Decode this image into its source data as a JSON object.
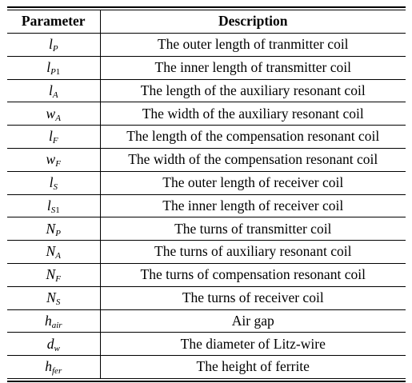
{
  "table": {
    "headers": {
      "parameter": "Parameter",
      "description": "Description"
    },
    "rows": [
      {
        "symbol": "l",
        "subscript": "P",
        "subscript_num": "",
        "description": "The outer length of tranmitter coil"
      },
      {
        "symbol": "l",
        "subscript": "P",
        "subscript_num": "1",
        "description": "The inner length of transmitter coil"
      },
      {
        "symbol": "l",
        "subscript": "A",
        "subscript_num": "",
        "description": "The length of the auxiliary resonant coil"
      },
      {
        "symbol": "w",
        "subscript": "A",
        "subscript_num": "",
        "description": "The width of the auxiliary resonant coil"
      },
      {
        "symbol": "l",
        "subscript": "F",
        "subscript_num": "",
        "description": "The length of the compensation resonant coil"
      },
      {
        "symbol": "w",
        "subscript": "F",
        "subscript_num": "",
        "description": "The width of the compensation resonant coil"
      },
      {
        "symbol": "l",
        "subscript": "S",
        "subscript_num": "",
        "description": "The outer length of receiver coil"
      },
      {
        "symbol": "l",
        "subscript": "S",
        "subscript_num": "1",
        "description": "The inner length of receiver  coil"
      },
      {
        "symbol": "N",
        "subscript": "P",
        "subscript_num": "",
        "description": "The turns of transmitter coil"
      },
      {
        "symbol": "N",
        "subscript": "A",
        "subscript_num": "",
        "description": "The turns of auxiliary resonant coil"
      },
      {
        "symbol": "N",
        "subscript": "F",
        "subscript_num": "",
        "description": "The turns of compensation resonant coil"
      },
      {
        "symbol": "N",
        "subscript": "S",
        "subscript_num": "",
        "description": "The turns of receiver coil"
      },
      {
        "symbol": "h",
        "subscript": "air",
        "subscript_num": "",
        "description": "Air gap"
      },
      {
        "symbol": "d",
        "subscript": "w",
        "subscript_num": "",
        "description": "The diameter of Litz-wire"
      },
      {
        "symbol": "h",
        "subscript": "fer",
        "subscript_num": "",
        "description": "The height of ferrite"
      }
    ]
  }
}
